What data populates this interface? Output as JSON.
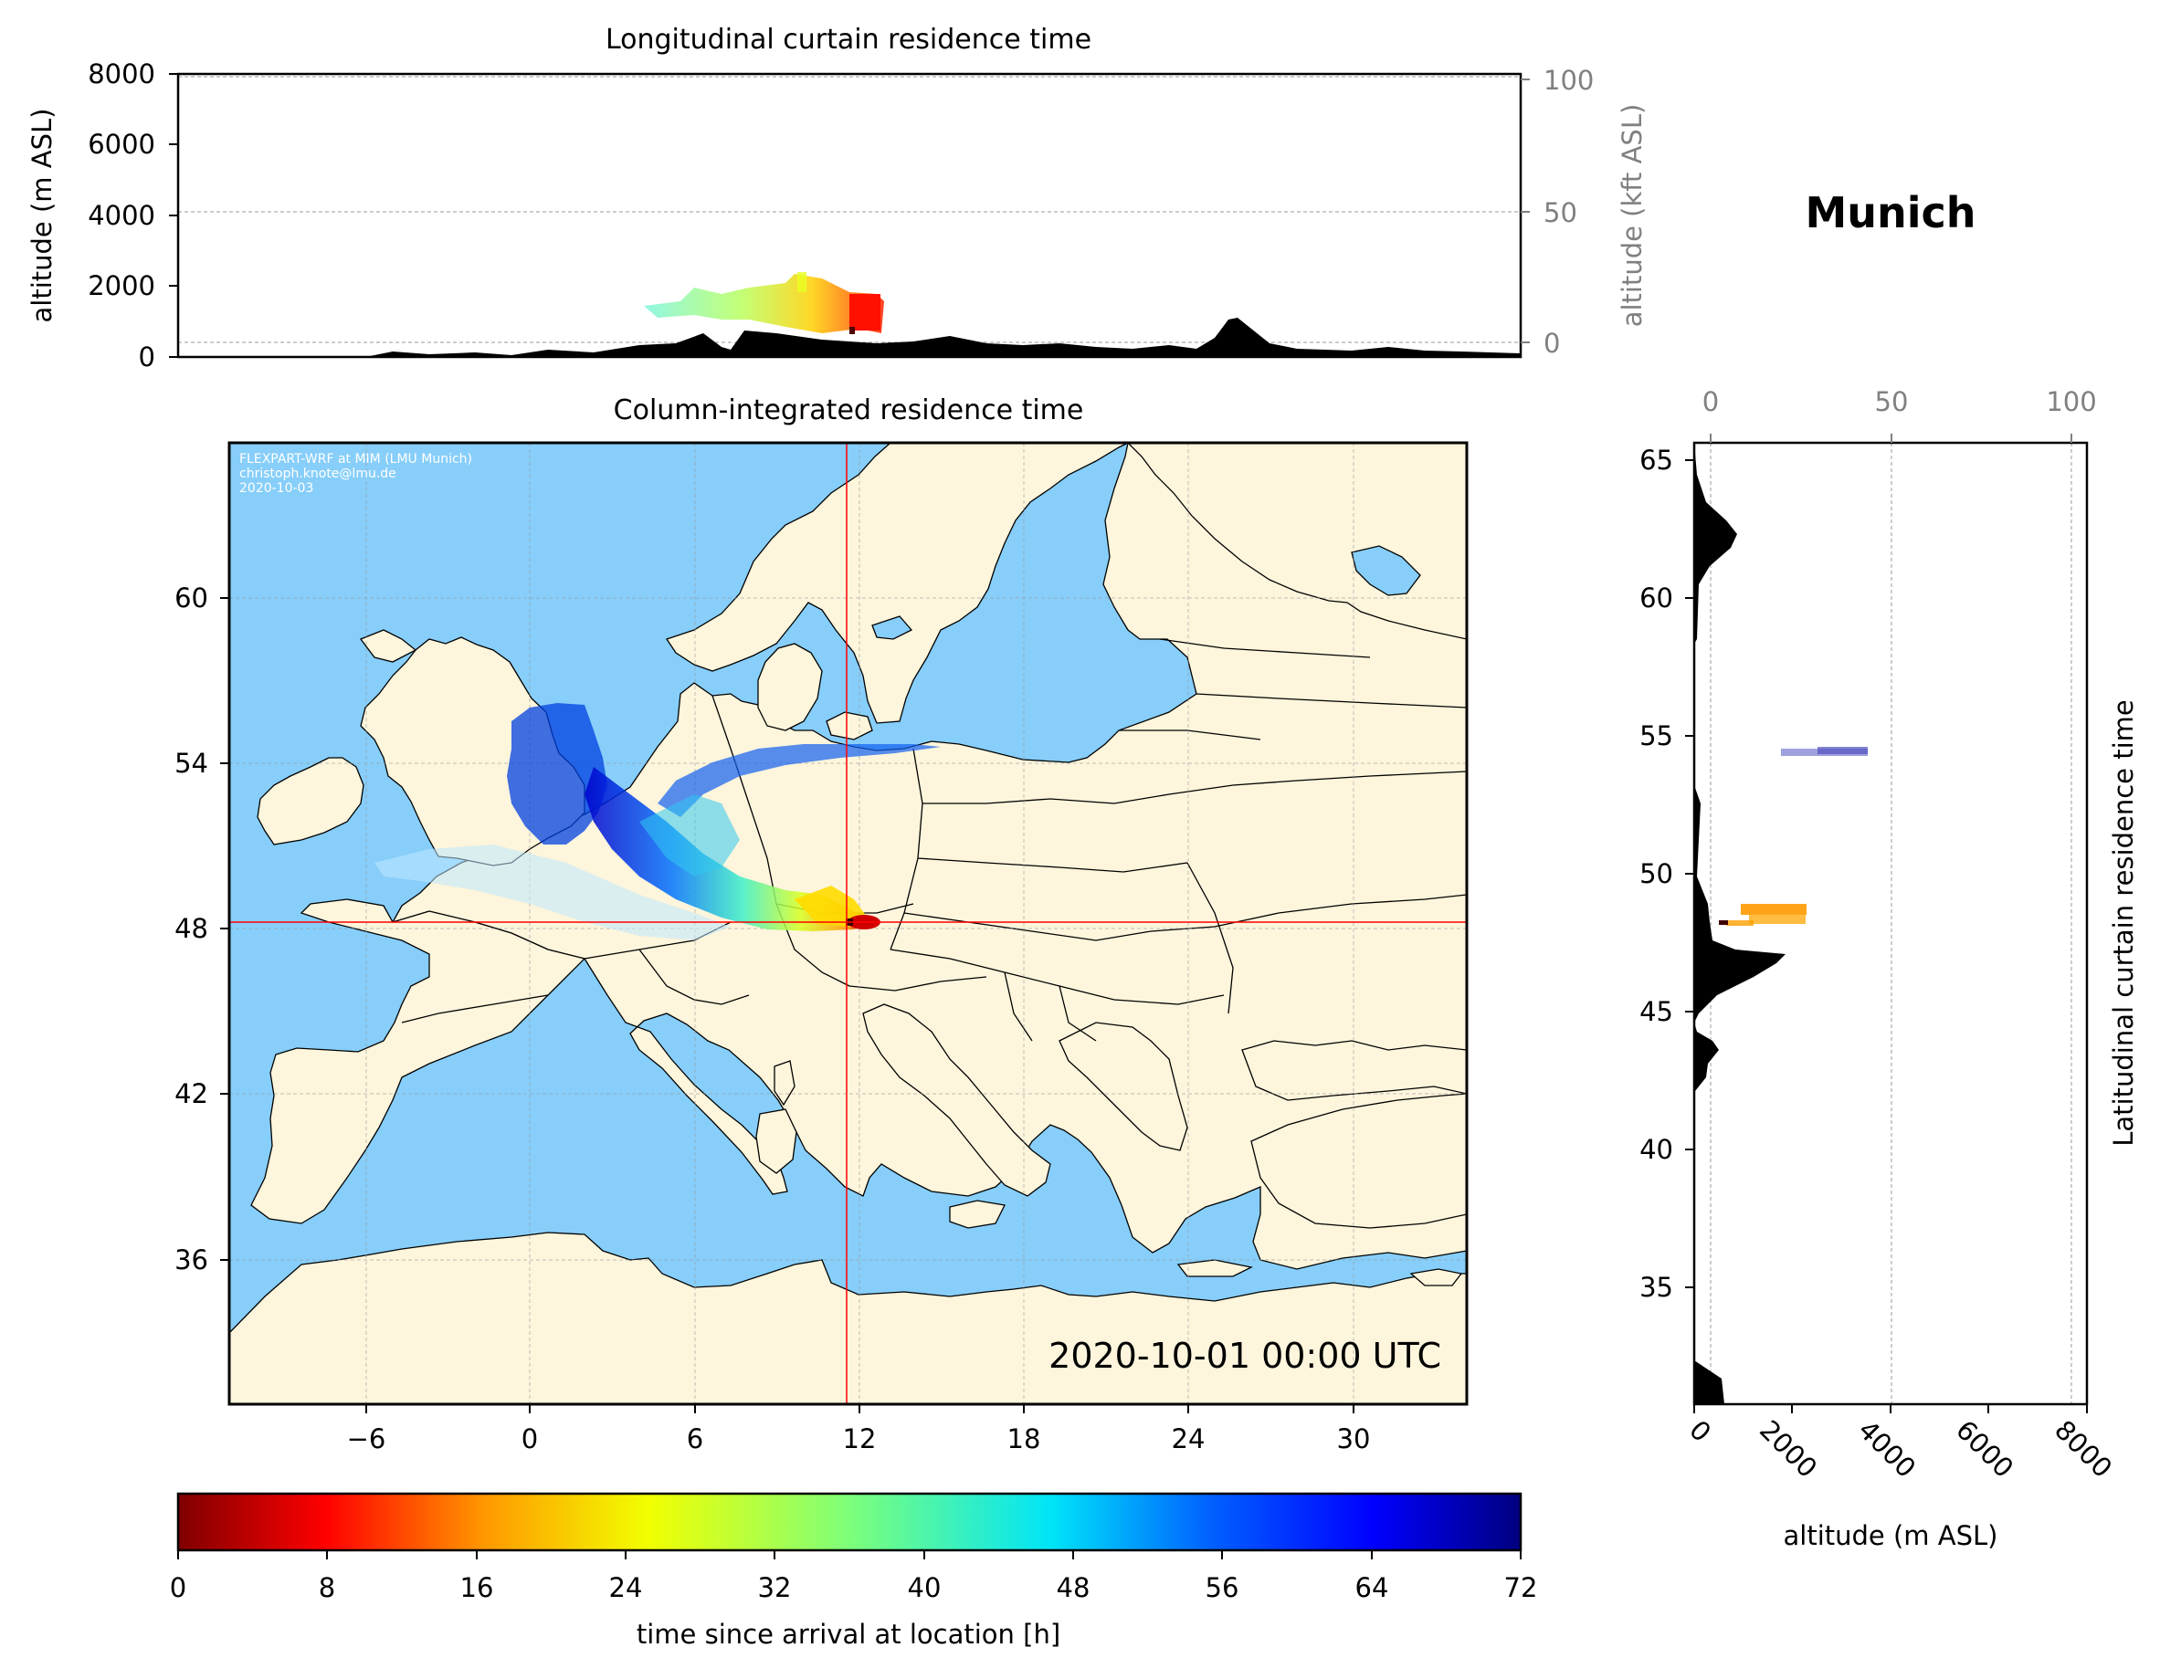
{
  "colors": {
    "ocean": "#87cefa",
    "land": "#fdf5dc",
    "marker": "#ff0000",
    "terrain": "#000000",
    "secondary_axis": "#808080"
  },
  "station_title": "Munich",
  "top_panel": {
    "title": "Longitudinal curtain residence time",
    "ylabel": "altitude (m ASL)",
    "ylabel_right": "altitude (kft ASL)",
    "yticks": [
      "0",
      "2000",
      "4000",
      "6000",
      "8000"
    ],
    "yticks_right": [
      "0",
      "50",
      "100"
    ]
  },
  "map_panel": {
    "title": "Column-integrated residence time",
    "credit_lines": [
      "FLEXPART-WRF at MIM (LMU Munich)",
      "christoph.knote@lmu.de",
      "2020-10-03"
    ],
    "timestamp": "2020-10-01 00:00 UTC",
    "xticks": [
      "−6",
      "0",
      "6",
      "12",
      "18",
      "24",
      "30"
    ],
    "yticks": [
      "36",
      "42",
      "48",
      "54",
      "60"
    ],
    "lon_range": [
      -11,
      34
    ],
    "lat_range": [
      30.5,
      65.5
    ],
    "receptor": {
      "lon": 11.6,
      "lat": 48.15
    }
  },
  "side_panel": {
    "ylabel": "Latitudinal curtain residence time",
    "xlabel": "altitude (m ASL)",
    "xticks": [
      "0",
      "2000",
      "4000",
      "6000",
      "8000"
    ],
    "xticks_top": [
      "0",
      "50",
      "100"
    ],
    "yticks": [
      "35",
      "40",
      "45",
      "50",
      "55",
      "60",
      "65"
    ]
  },
  "colorbar": {
    "label": "time since arrival at location [h]",
    "ticks": [
      "0",
      "8",
      "16",
      "24",
      "32",
      "40",
      "48",
      "56",
      "64",
      "72"
    ],
    "colormap": "jet_r",
    "range": [
      0,
      72
    ]
  }
}
